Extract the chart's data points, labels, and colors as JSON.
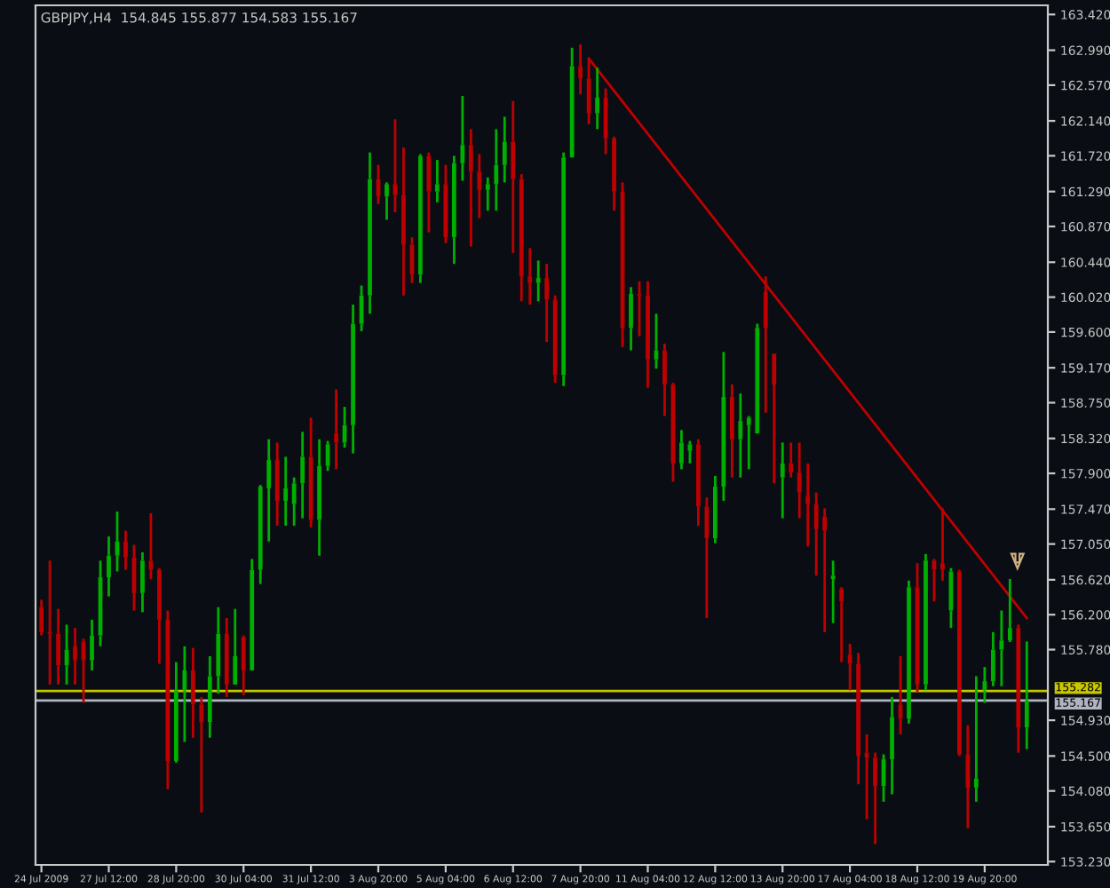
{
  "chart_data": {
    "type": "candlestick",
    "title": "GBPJPY,H4  154.845 155.877 154.583 155.167",
    "categories": [
      "24 Jul 2009",
      null,
      null,
      null,
      null,
      null,
      null,
      null,
      "27 Jul 12:00",
      null,
      null,
      null,
      null,
      null,
      null,
      null,
      "28 Jul 20:00",
      null,
      null,
      null,
      null,
      null,
      null,
      null,
      "30 Jul 04:00",
      null,
      null,
      null,
      null,
      null,
      null,
      null,
      "31 Jul 12:00",
      null,
      null,
      null,
      null,
      null,
      null,
      null,
      "3 Aug 20:00",
      null,
      null,
      null,
      null,
      null,
      null,
      null,
      "5 Aug 04:00",
      null,
      null,
      null,
      null,
      null,
      null,
      null,
      "6 Aug 12:00",
      null,
      null,
      null,
      null,
      null,
      null,
      null,
      "7 Aug 20:00",
      null,
      null,
      null,
      null,
      null,
      null,
      null,
      "11 Aug 04:00",
      null,
      null,
      null,
      null,
      null,
      null,
      null,
      "12 Aug 12:00",
      null,
      null,
      null,
      null,
      null,
      null,
      null,
      "13 Aug 20:00",
      null,
      null,
      null,
      null,
      null,
      null,
      null,
      "17 Aug 04:00",
      null,
      null,
      null,
      null,
      null,
      null,
      null,
      "18 Aug 12:00",
      null,
      null,
      null,
      null,
      null,
      null,
      null,
      "19 Aug 20:00",
      null,
      null,
      null,
      null,
      null
    ],
    "ohlc": [
      [
        156.29,
        156.38,
        155.95,
        155.99
      ],
      [
        155.99,
        156.85,
        155.36,
        155.97
      ],
      [
        155.97,
        156.27,
        155.36,
        155.59
      ],
      [
        155.59,
        156.08,
        155.36,
        155.78
      ],
      [
        155.82,
        156.04,
        155.36,
        155.65
      ],
      [
        155.87,
        155.91,
        155.14,
        155.65
      ],
      [
        155.65,
        156.14,
        155.53,
        155.95
      ],
      [
        155.95,
        156.85,
        155.82,
        156.65
      ],
      [
        156.65,
        157.14,
        156.42,
        156.91
      ],
      [
        156.91,
        157.44,
        156.72,
        157.08
      ],
      [
        157.08,
        157.21,
        156.74,
        156.89
      ],
      [
        156.89,
        157.04,
        156.25,
        156.46
      ],
      [
        156.46,
        156.95,
        156.23,
        156.85
      ],
      [
        156.85,
        157.42,
        156.63,
        156.74
      ],
      [
        156.74,
        156.76,
        155.61,
        156.14
      ],
      [
        156.14,
        156.25,
        154.1,
        154.44
      ],
      [
        154.44,
        155.63,
        154.42,
        155.29
      ],
      [
        155.29,
        155.82,
        154.67,
        155.53
      ],
      [
        155.53,
        155.8,
        154.72,
        155.12
      ],
      [
        155.12,
        155.21,
        153.82,
        154.91
      ],
      [
        154.91,
        155.7,
        154.72,
        155.46
      ],
      [
        155.46,
        156.29,
        155.25,
        155.97
      ],
      [
        155.97,
        156.16,
        155.21,
        155.36
      ],
      [
        155.36,
        156.27,
        155.36,
        155.7
      ],
      [
        155.93,
        155.95,
        155.23,
        155.53
      ],
      [
        155.53,
        156.87,
        155.53,
        156.74
      ],
      [
        156.74,
        157.76,
        156.57,
        157.74
      ],
      [
        157.72,
        158.31,
        157.08,
        158.06
      ],
      [
        158.06,
        158.27,
        157.27,
        157.57
      ],
      [
        157.57,
        158.1,
        157.27,
        157.72
      ],
      [
        157.53,
        157.85,
        157.27,
        157.78
      ],
      [
        157.78,
        158.4,
        157.36,
        158.1
      ],
      [
        158.1,
        158.57,
        157.25,
        157.34
      ],
      [
        157.34,
        158.31,
        156.91,
        157.99
      ],
      [
        157.99,
        158.29,
        157.93,
        158.25
      ],
      [
        158.38,
        158.91,
        157.95,
        158.27
      ],
      [
        158.27,
        158.7,
        158.21,
        158.48
      ],
      [
        158.48,
        159.93,
        158.14,
        159.7
      ],
      [
        159.7,
        160.16,
        159.61,
        160.04
      ],
      [
        160.04,
        161.76,
        159.82,
        161.44
      ],
      [
        161.44,
        161.61,
        161.14,
        161.23
      ],
      [
        161.23,
        161.4,
        160.95,
        161.38
      ],
      [
        161.38,
        162.16,
        161.04,
        161.25
      ],
      [
        161.25,
        161.82,
        160.04,
        160.65
      ],
      [
        160.65,
        160.74,
        160.19,
        160.29
      ],
      [
        160.29,
        161.74,
        160.19,
        161.72
      ],
      [
        161.72,
        161.76,
        160.8,
        161.29
      ],
      [
        161.29,
        161.67,
        161.16,
        161.38
      ],
      [
        161.38,
        161.61,
        160.67,
        160.74
      ],
      [
        160.74,
        161.72,
        160.42,
        161.63
      ],
      [
        161.63,
        162.44,
        161.42,
        161.85
      ],
      [
        161.85,
        162.04,
        160.63,
        161.53
      ],
      [
        161.53,
        161.74,
        160.97,
        161.31
      ],
      [
        161.31,
        161.46,
        161.06,
        161.38
      ],
      [
        161.38,
        162.04,
        161.06,
        161.61
      ],
      [
        161.61,
        162.19,
        161.4,
        161.89
      ],
      [
        161.89,
        162.38,
        160.55,
        161.44
      ],
      [
        161.44,
        161.5,
        159.97,
        160.27
      ],
      [
        160.27,
        160.61,
        159.93,
        160.19
      ],
      [
        160.19,
        160.46,
        159.97,
        160.25
      ],
      [
        160.25,
        160.42,
        159.48,
        159.99
      ],
      [
        159.99,
        160.04,
        158.99,
        159.08
      ],
      [
        159.08,
        161.76,
        158.95,
        161.7
      ],
      [
        161.7,
        163.02,
        161.7,
        162.8
      ],
      [
        162.8,
        163.06,
        162.46,
        162.65
      ],
      [
        162.65,
        162.89,
        162.1,
        162.23
      ],
      [
        162.23,
        162.78,
        162.04,
        162.42
      ],
      [
        162.42,
        162.53,
        161.74,
        161.93
      ],
      [
        161.93,
        161.95,
        161.06,
        161.29
      ],
      [
        161.29,
        161.4,
        159.42,
        159.65
      ],
      [
        159.65,
        160.14,
        159.38,
        160.06
      ],
      [
        160.06,
        160.21,
        159.55,
        160.04
      ],
      [
        160.04,
        160.21,
        158.93,
        159.27
      ],
      [
        159.27,
        159.82,
        159.16,
        159.38
      ],
      [
        159.38,
        159.46,
        158.59,
        158.97
      ],
      [
        158.97,
        158.99,
        157.8,
        158.02
      ],
      [
        158.02,
        158.42,
        157.95,
        158.27
      ],
      [
        158.17,
        158.29,
        158.02,
        158.25
      ],
      [
        158.25,
        158.31,
        157.27,
        157.5
      ],
      [
        157.5,
        157.61,
        156.16,
        157.12
      ],
      [
        157.12,
        157.87,
        157.06,
        157.74
      ],
      [
        157.74,
        159.36,
        157.57,
        158.82
      ],
      [
        158.82,
        158.97,
        157.85,
        158.31
      ],
      [
        158.31,
        158.86,
        157.85,
        158.53
      ],
      [
        158.48,
        158.59,
        157.95,
        158.57
      ],
      [
        158.38,
        159.7,
        158.38,
        159.65
      ],
      [
        160.08,
        160.27,
        158.63,
        159.65
      ],
      [
        159.34,
        159.34,
        157.78,
        158.97
      ],
      [
        157.85,
        158.27,
        157.36,
        158.02
      ],
      [
        158.02,
        158.27,
        157.85,
        157.91
      ],
      [
        157.91,
        158.27,
        157.36,
        157.67
      ],
      [
        157.63,
        158.02,
        157.02,
        157.53
      ],
      [
        157.53,
        157.67,
        156.67,
        157.23
      ],
      [
        157.38,
        157.48,
        155.99,
        157.21
      ],
      [
        156.63,
        156.85,
        156.1,
        156.67
      ],
      [
        156.51,
        156.53,
        155.63,
        156.36
      ],
      [
        155.72,
        155.85,
        155.29,
        155.61
      ],
      [
        155.61,
        155.74,
        154.16,
        154.5
      ],
      [
        154.54,
        154.76,
        153.74,
        154.48
      ],
      [
        154.48,
        154.54,
        153.44,
        154.14
      ],
      [
        154.14,
        154.52,
        153.95,
        154.46
      ],
      [
        154.46,
        155.21,
        154.04,
        154.97
      ],
      [
        155.12,
        155.7,
        154.76,
        154.95
      ],
      [
        154.95,
        156.61,
        154.89,
        156.53
      ],
      [
        156.53,
        156.82,
        155.27,
        155.36
      ],
      [
        155.36,
        156.93,
        155.29,
        156.85
      ],
      [
        156.85,
        156.87,
        156.36,
        156.74
      ],
      [
        156.82,
        157.48,
        156.61,
        156.74
      ],
      [
        156.25,
        156.76,
        156.04,
        156.72
      ],
      [
        156.72,
        156.74,
        154.5,
        154.52
      ],
      [
        154.52,
        154.87,
        153.63,
        154.12
      ],
      [
        154.12,
        155.46,
        153.95,
        154.23
      ],
      [
        155.29,
        155.57,
        155.14,
        155.4
      ],
      [
        155.4,
        155.99,
        155.34,
        155.78
      ],
      [
        155.78,
        156.25,
        155.34,
        155.89
      ],
      [
        155.89,
        156.63,
        155.87,
        156.04
      ],
      [
        156.04,
        156.08,
        154.54,
        154.84
      ],
      [
        154.845,
        155.877,
        154.583,
        155.167
      ]
    ],
    "colors": [
      "#c00000",
      "#c00000",
      "#c00000",
      "#00b000",
      "#c00000",
      "#c00000",
      "#00b000",
      "#00b000",
      "#00b000",
      "#00b000",
      "#c00000",
      "#c00000",
      "#00b000",
      "#c00000",
      "#c00000",
      "#c00000",
      "#00b000",
      "#00b000",
      "#c00000",
      "#c00000",
      "#00b000",
      "#00b000",
      "#c00000",
      "#00b000",
      "#c00000",
      "#00b000",
      "#00b000",
      "#00b000",
      "#c00000",
      "#00b000",
      "#00b000",
      "#00b000",
      "#c00000",
      "#00b000",
      "#00b000",
      "#c00000",
      "#00b000",
      "#00b000",
      "#00b000",
      "#00b000",
      "#c00000",
      "#00b000",
      "#c00000",
      "#c00000",
      "#c00000",
      "#00b000",
      "#c00000",
      "#00b000",
      "#c00000",
      "#00b000",
      "#00b000",
      "#c00000",
      "#c00000",
      "#00b000",
      "#00b000",
      "#00b000",
      "#c00000",
      "#c00000",
      "#c00000",
      "#00b000",
      "#c00000",
      "#c00000",
      "#00b000",
      "#00b000",
      "#c00000",
      "#c00000",
      "#00b000",
      "#c00000",
      "#c00000",
      "#c00000",
      "#00b000",
      "#c00000",
      "#c00000",
      "#00b000",
      "#c00000",
      "#c00000",
      "#00b000",
      "#00b000",
      "#c00000",
      "#c00000",
      "#00b000",
      "#00b000",
      "#c00000",
      "#00b000",
      "#00b000",
      "#00b000",
      "#c00000",
      "#c00000",
      "#00b000",
      "#c00000",
      "#c00000",
      "#c00000",
      "#c00000",
      "#c00000",
      "#00b000",
      "#c00000",
      "#c00000",
      "#c00000",
      "#c00000",
      "#c00000",
      "#00b000",
      "#00b000",
      "#c00000",
      "#00b000",
      "#c00000",
      "#00b000",
      "#c00000",
      "#c00000",
      "#00b000",
      "#c00000",
      "#c00000",
      "#00b000",
      "#00b000",
      "#00b000",
      "#00b000",
      "#00b000",
      "#c00000",
      "#00b000"
    ],
    "series": [
      {
        "type": "line",
        "color": "#c00000",
        "values": [
          null,
          null,
          null,
          null,
          null,
          null,
          null,
          null,
          null,
          null,
          null,
          null,
          null,
          null,
          null,
          null,
          null,
          null,
          null,
          null,
          null,
          null,
          null,
          null,
          null,
          null,
          null,
          null,
          null,
          null,
          null,
          null,
          null,
          null,
          null,
          null,
          null,
          null,
          null,
          null,
          null,
          null,
          null,
          null,
          null,
          null,
          null,
          null,
          null,
          null,
          null,
          null,
          null,
          null,
          null,
          null,
          null,
          null,
          null,
          null,
          null,
          null,
          null,
          null,
          null,
          162.89,
          null,
          null,
          null,
          null,
          null,
          null,
          null,
          null,
          null,
          null,
          null,
          null,
          null,
          null,
          null,
          null,
          null,
          null,
          null,
          null,
          null,
          null,
          null,
          null,
          null,
          null,
          null,
          null,
          null,
          null,
          null,
          null,
          null,
          null,
          null,
          null,
          null,
          null,
          null,
          null,
          null,
          null,
          null,
          null,
          null,
          null,
          null,
          null,
          null,
          null,
          null,
          156.16
        ]
      }
    ],
    "ref_lines": [
      {
        "axis": "y",
        "value": 155.282,
        "label": "155.282",
        "color": "#c8c800"
      },
      {
        "axis": "y",
        "value": 155.167,
        "label": "155.167",
        "color": "#b0b4c0"
      }
    ],
    "ylim": [
      153.19,
      163.53
    ],
    "yticks": [
      {
        "value": 163.42,
        "label": "163.420"
      },
      {
        "value": 162.99,
        "label": "162.990"
      },
      {
        "value": 162.57,
        "label": "162.570"
      },
      {
        "value": 162.14,
        "label": "162.140"
      },
      {
        "value": 161.72,
        "label": "161.720"
      },
      {
        "value": 161.29,
        "label": "161.290"
      },
      {
        "value": 160.87,
        "label": "160.870"
      },
      {
        "value": 160.44,
        "label": "160.440"
      },
      {
        "value": 160.02,
        "label": "160.020"
      },
      {
        "value": 159.6,
        "label": "159.600"
      },
      {
        "value": 159.17,
        "label": "159.170"
      },
      {
        "value": 158.75,
        "label": "158.750"
      },
      {
        "value": 158.32,
        "label": "158.320"
      },
      {
        "value": 157.9,
        "label": "157.900"
      },
      {
        "value": 157.47,
        "label": "157.470"
      },
      {
        "value": 157.05,
        "label": "157.050"
      },
      {
        "value": 156.62,
        "label": "156.620"
      },
      {
        "value": 156.2,
        "label": "156.200"
      },
      {
        "value": 155.78,
        "label": "155.780"
      },
      {
        "value": 154.93,
        "label": "154.930"
      },
      {
        "value": 154.5,
        "label": "154.500"
      },
      {
        "value": 154.08,
        "label": "154.080"
      },
      {
        "value": 153.65,
        "label": "153.650"
      },
      {
        "value": 153.23,
        "label": "153.230"
      }
    ]
  }
}
